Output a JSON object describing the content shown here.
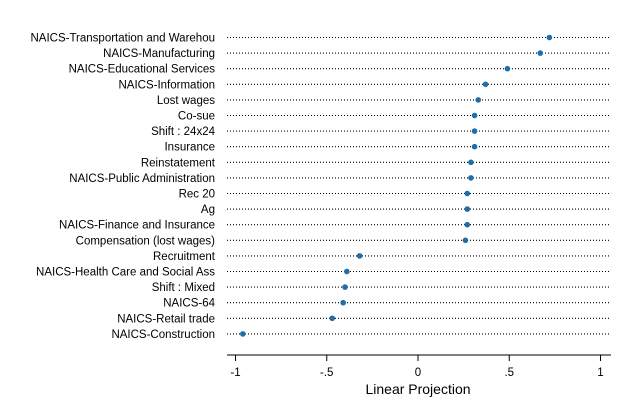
{
  "chart_data": {
    "type": "dot",
    "xlabel": "Linear Projection",
    "xlim": [
      -1.02,
      1.02
    ],
    "xticks": [
      -1,
      -0.5,
      0,
      0.5,
      1
    ],
    "xtick_labels": [
      "-1",
      "-.5",
      "0",
      ".5",
      "1"
    ],
    "marker_color": "#1f6ea8",
    "grid": "dotted horizontal reference lines per category",
    "points": [
      {
        "label": "NAICS-Transportation and Warehou",
        "value": 0.72
      },
      {
        "label": "NAICS-Manufacturing",
        "value": 0.67
      },
      {
        "label": "NAICS-Educational Services",
        "value": 0.49
      },
      {
        "label": "NAICS-Information",
        "value": 0.37
      },
      {
        "label": "Lost wages",
        "value": 0.33
      },
      {
        "label": "Co-sue",
        "value": 0.31
      },
      {
        "label": "Shift : 24x24",
        "value": 0.31
      },
      {
        "label": "Insurance",
        "value": 0.31
      },
      {
        "label": "Reinstatement",
        "value": 0.29
      },
      {
        "label": "NAICS-Public Administration",
        "value": 0.29
      },
      {
        "label": "Rec 20",
        "value": 0.27
      },
      {
        "label": "Ag",
        "value": 0.27
      },
      {
        "label": "NAICS-Finance and Insurance",
        "value": 0.27
      },
      {
        "label": "Compensation (lost wages)",
        "value": 0.26
      },
      {
        "label": "Recruitment",
        "value": -0.32
      },
      {
        "label": "NAICS-Health Care and Social Ass",
        "value": -0.39
      },
      {
        "label": "Shift : Mixed",
        "value": -0.4
      },
      {
        "label": "NAICS-64",
        "value": -0.41
      },
      {
        "label": "NAICS-Retail trade",
        "value": -0.47
      },
      {
        "label": "NAICS-Construction",
        "value": -0.96
      }
    ]
  }
}
